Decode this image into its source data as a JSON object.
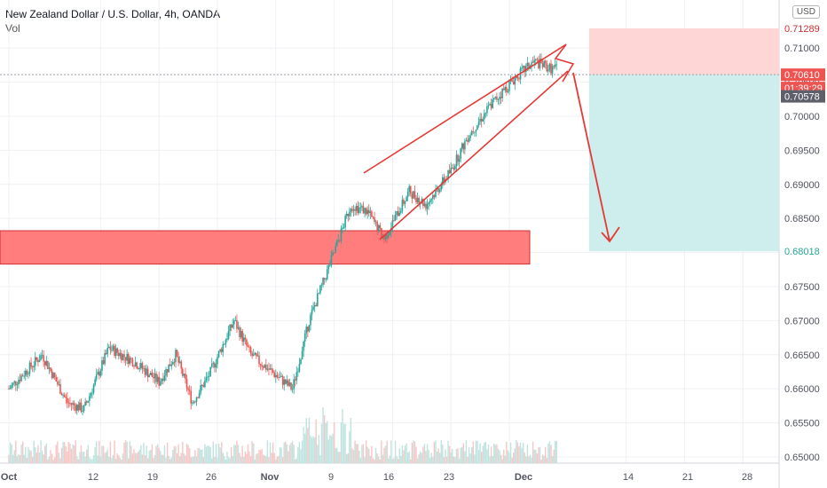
{
  "header": {
    "symbol_title": "New Zealand Dollar / U.S. Dollar, 4h, OANDA",
    "volume_label": "Vol",
    "currency_button": "USD"
  },
  "colors": {
    "up": "#26a69a",
    "down": "#ef5350",
    "zone_fill": "#ff7d7d",
    "zone_border": "#d32f2f",
    "pattern_line": "#e53935",
    "stop_fill": "#ffd6d6",
    "target_fill": "#cdeeed",
    "grid": "#eef0f3"
  },
  "chart_data": {
    "type": "candlestick",
    "ylim": [
      0.65,
      0.716
    ],
    "y_ticks": [
      "0.65000",
      "0.65500",
      "0.66000",
      "0.66500",
      "0.67000",
      "0.67500",
      "0.68000",
      "0.68500",
      "0.69000",
      "0.69500",
      "0.70000",
      "0.70500",
      "0.71000"
    ],
    "x_ticks": [
      "Oct",
      "12",
      "19",
      "26",
      "Nov",
      "9",
      "16",
      "23",
      "Dec",
      "14",
      "21",
      "28"
    ],
    "price_labels": {
      "stop": "0.71289",
      "entry": "0.70610",
      "countdown": "01:39:29",
      "last": "0.70578",
      "target": "0.68018"
    },
    "annotations": {
      "support_zone": [
        0.6783,
        0.6832
      ],
      "rising_wedge_upper": [
        [
          "Nov 12",
          0.6915
        ],
        [
          "Dec 7",
          0.711
        ]
      ],
      "rising_wedge_lower": [
        [
          "Nov 15",
          0.6815
        ],
        [
          "Dec 7",
          0.708
        ]
      ],
      "short_position": {
        "entry": 0.7061,
        "stop": 0.71289,
        "target": 0.68018
      }
    },
    "close_path": [
      [
        "Oct 1",
        0.66
      ],
      [
        "Oct 5",
        0.665
      ],
      [
        "Oct 8",
        0.658
      ],
      [
        "Oct 10",
        0.657
      ],
      [
        "Oct 13",
        0.666
      ],
      [
        "Oct 16",
        0.664
      ],
      [
        "Oct 19",
        0.661
      ],
      [
        "Oct 21",
        0.665
      ],
      [
        "Oct 23",
        0.658
      ],
      [
        "Oct 25",
        0.662
      ],
      [
        "Oct 28",
        0.67
      ],
      [
        "Oct 30",
        0.665
      ],
      [
        "Nov 2",
        0.662
      ],
      [
        "Nov 4",
        0.66
      ],
      [
        "Nov 6",
        0.67
      ],
      [
        "Nov 9",
        0.68
      ],
      [
        "Nov 11",
        0.687
      ],
      [
        "Nov 13",
        0.686
      ],
      [
        "Nov 15",
        0.682
      ],
      [
        "Nov 18",
        0.689
      ],
      [
        "Nov 20",
        0.687
      ],
      [
        "Nov 23",
        0.692
      ],
      [
        "Nov 25",
        0.697
      ],
      [
        "Nov 28",
        0.702
      ],
      [
        "Dec 1",
        0.706
      ],
      [
        "Dec 3",
        0.708
      ],
      [
        "Dec 5",
        0.707
      ]
    ]
  }
}
